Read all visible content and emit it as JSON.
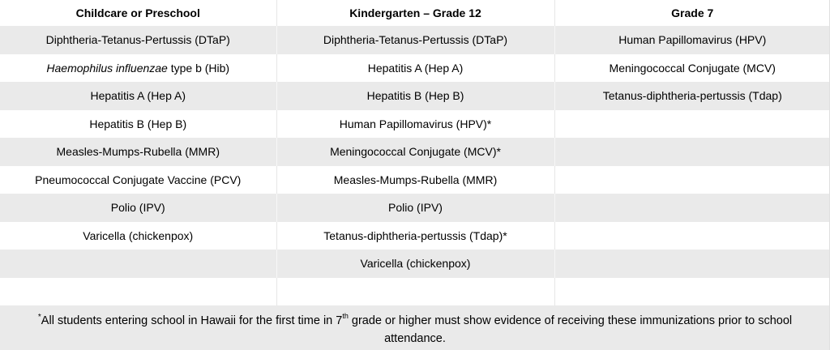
{
  "table": {
    "headers": [
      "Childcare or Preschool",
      "Kindergarten –  Grade 12",
      "Grade 7"
    ],
    "rows": [
      [
        "Diphtheria-Tetanus-Pertussis (DTaP)",
        "Diphtheria-Tetanus-Pertussis (DTaP)",
        "Human Papillomavirus (HPV)"
      ],
      [
        "",
        "Hepatitis A (Hep A)",
        "Meningococcal Conjugate (MCV)"
      ],
      [
        "Hepatitis A (Hep A)",
        "Hepatitis B (Hep B)",
        "Tetanus-diphtheria-pertussis (Tdap)"
      ],
      [
        "Hepatitis B (Hep B)",
        "Human Papillomavirus (HPV)*",
        ""
      ],
      [
        "Measles-Mumps-Rubella (MMR)",
        "Meningococcal Conjugate (MCV)*",
        ""
      ],
      [
        "Pneumococcal Conjugate Vaccine (PCV)",
        "Measles-Mumps-Rubella (MMR)",
        ""
      ],
      [
        "Polio (IPV)",
        "Polio (IPV)",
        ""
      ],
      [
        "Varicella (chickenpox)",
        "Tetanus-diphtheria-pertussis (Tdap)*",
        ""
      ],
      [
        "",
        "Varicella (chickenpox)",
        ""
      ],
      [
        "",
        "",
        ""
      ]
    ],
    "hib_cell": {
      "italic_part": "Haemophilus influenzae",
      "rest": " type b (Hib)"
    }
  },
  "footnote": {
    "mark": "*",
    "text_before": "All students entering school in Hawaii for the first time in 7",
    "superscript": "th",
    "text_after": " grade or higher must show evidence of receiving these immunizations prior to school attendance."
  },
  "colors": {
    "shaded_row": "#eaeaea",
    "background": "#ffffff"
  }
}
